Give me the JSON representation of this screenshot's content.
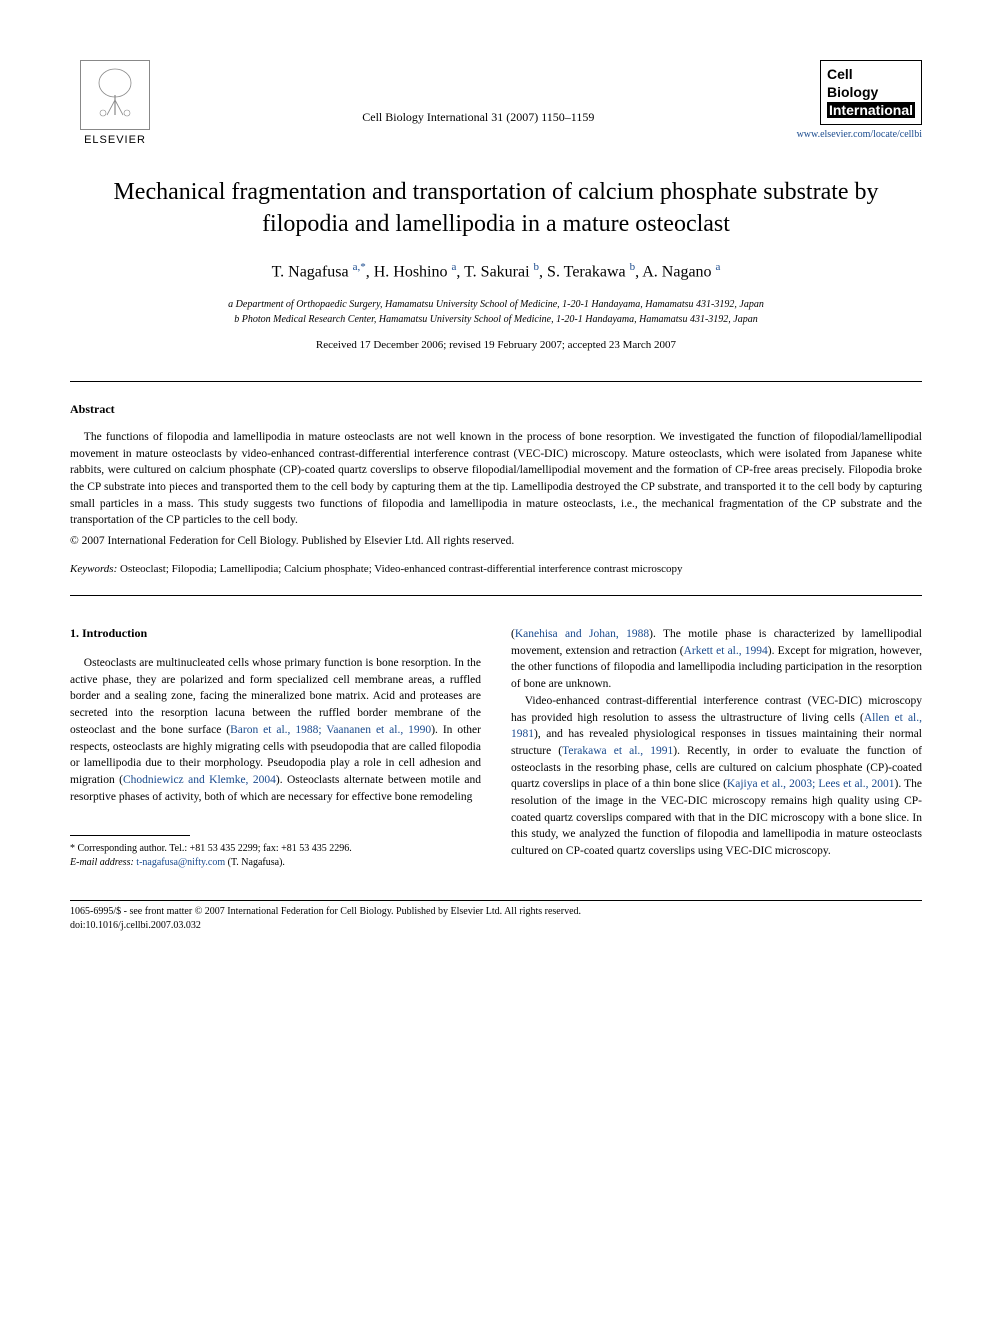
{
  "publisher": {
    "name": "ELSEVIER",
    "logo_alt": "tree"
  },
  "journal_ref": "Cell Biology International 31 (2007) 1150–1159",
  "journal_logo": {
    "line1": "Cell",
    "line2": "Biology",
    "line3": "International"
  },
  "journal_url": "www.elsevier.com/locate/cellbi",
  "title": "Mechanical fragmentation and transportation of calcium phosphate substrate by filopodia and lamellipodia in a mature osteoclast",
  "authors_html": "T. Nagafusa <sup>a,*</sup>, H. Hoshino <sup>a</sup>, T. Sakurai <sup>b</sup>, S. Terakawa <sup>b</sup>, A. Nagano <sup>a</sup>",
  "affiliations": {
    "a": "a Department of Orthopaedic Surgery, Hamamatsu University School of Medicine, 1-20-1 Handayama, Hamamatsu 431-3192, Japan",
    "b": "b Photon Medical Research Center, Hamamatsu University School of Medicine, 1-20-1 Handayama, Hamamatsu 431-3192, Japan"
  },
  "dates": "Received 17 December 2006; revised 19 February 2007; accepted 23 March 2007",
  "abstract_heading": "Abstract",
  "abstract_text": "The functions of filopodia and lamellipodia in mature osteoclasts are not well known in the process of bone resorption. We investigated the function of filopodial/lamellipodial movement in mature osteoclasts by video-enhanced contrast-differential interference contrast (VEC-DIC) microscopy. Mature osteoclasts, which were isolated from Japanese white rabbits, were cultured on calcium phosphate (CP)-coated quartz coverslips to observe filopodial/lamellipodial movement and the formation of CP-free areas precisely. Filopodia broke the CP substrate into pieces and transported them to the cell body by capturing them at the tip. Lamellipodia destroyed the CP substrate, and transported it to the cell body by capturing small particles in a mass. This study suggests two functions of filopodia and lamellipodia in mature osteoclasts, i.e., the mechanical fragmentation of the CP substrate and the transportation of the CP particles to the cell body.",
  "copyright": "© 2007 International Federation for Cell Biology. Published by Elsevier Ltd. All rights reserved.",
  "keywords_label": "Keywords:",
  "keywords": "Osteoclast; Filopodia; Lamellipodia; Calcium phosphate; Video-enhanced contrast-differential interference contrast microscopy",
  "section1_heading": "1. Introduction",
  "col1_para1_pre": "Osteoclasts are multinucleated cells whose primary function is bone resorption. In the active phase, they are polarized and form specialized cell membrane areas, a ruffled border and a sealing zone, facing the mineralized bone matrix. Acid and proteases are secreted into the resorption lacuna between the ruffled border membrane of the osteoclast and the bone surface (",
  "cite1": "Baron et al., 1988; Vaananen et al., 1990",
  "col1_para1_mid1": "). In other respects, osteoclasts are highly migrating cells with pseudopodia that are called filopodia or lamellipodia due to their morphology. Pseudopodia play a role in cell adhesion and migration (",
  "cite2": "Chodniewicz and Klemke, 2004",
  "col1_para1_post": "). Osteoclasts alternate between motile and resorptive phases of activity, both of which are necessary for effective bone remodeling",
  "col2_para1_pre": "(",
  "cite3": "Kanehisa and Johan, 1988",
  "col2_para1_mid1": "). The motile phase is characterized by lamellipodial movement, extension and retraction (",
  "cite4": "Arkett et al., 1994",
  "col2_para1_post": "). Except for migration, however, the other functions of filopodia and lamellipodia including participation in the resorption of bone are unknown.",
  "col2_para2_pre": "Video-enhanced contrast-differential interference contrast (VEC-DIC) microscopy has provided high resolution to assess the ultrastructure of living cells (",
  "cite5": "Allen et al., 1981",
  "col2_para2_mid1": "), and has revealed physiological responses in tissues maintaining their normal structure (",
  "cite6": "Terakawa et al., 1991",
  "col2_para2_mid2": "). Recently, in order to evaluate the function of osteoclasts in the resorbing phase, cells are cultured on calcium phosphate (CP)-coated quartz coverslips in place of a thin bone slice (",
  "cite7": "Kajiya et al., 2003; Lees et al., 2001",
  "col2_para2_post": "). The resolution of the image in the VEC-DIC microscopy remains high quality using CP-coated quartz coverslips compared with that in the DIC microscopy with a bone slice. In this study, we analyzed the function of filopodia and lamellipodia in mature osteoclasts cultured on CP-coated quartz coverslips using VEC-DIC microscopy.",
  "footnote_corresponding": "* Corresponding author. Tel.: +81 53 435 2299; fax: +81 53 435 2296.",
  "footnote_email_label": "E-mail address:",
  "footnote_email": "t-nagafusa@nifty.com",
  "footnote_email_author": "(T. Nagafusa).",
  "bottom_line1": "1065-6995/$ - see front matter © 2007 International Federation for Cell Biology. Published by Elsevier Ltd. All rights reserved.",
  "bottom_line2": "doi:10.1016/j.cellbi.2007.03.032"
}
